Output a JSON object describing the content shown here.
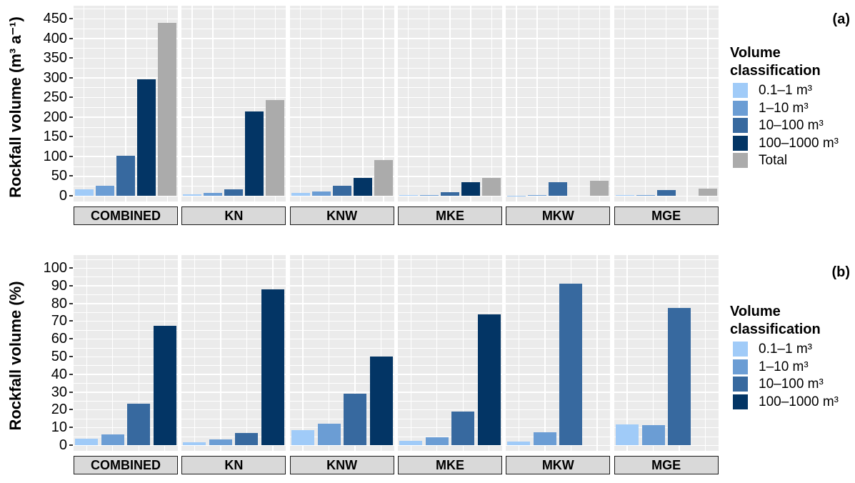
{
  "figure_type": "faceted-bar-chart-two-panels",
  "chart_data": [
    {
      "type": "bar",
      "panel_label": "(a)",
      "ylabel": "Rockfall volume (m³ a⁻¹)",
      "facets": [
        "COMBINED",
        "KN",
        "KNW",
        "MKE",
        "MKW",
        "MGE"
      ],
      "series": [
        {
          "name": "0.1–1 m³",
          "color": "#A0CBF8",
          "values": [
            16,
            4,
            8,
            1.2,
            0.8,
            2.2
          ]
        },
        {
          "name": "1–10 m³",
          "color": "#6B9DD4",
          "values": [
            26,
            8,
            11,
            2.1,
            2.7,
            2.1
          ]
        },
        {
          "name": "10–100 m³",
          "color": "#37699F",
          "values": [
            102,
            17,
            26,
            8.7,
            34.6,
            14.6
          ]
        },
        {
          "name": "100–1000 m³",
          "color": "#033565",
          "values": [
            295,
            214,
            45,
            34,
            0,
            0
          ]
        },
        {
          "name": "Total",
          "color": "#ABABAB",
          "values": [
            439,
            243,
            90,
            46,
            38,
            19
          ]
        }
      ],
      "ylim": [
        0,
        450
      ],
      "ytick_step": 50,
      "yminor_step": 25,
      "grid": true,
      "legend_title": "Volume classification",
      "legend_position": "right"
    },
    {
      "type": "bar",
      "panel_label": "(b)",
      "ylabel": "Rockfall volume (%)",
      "facets": [
        "COMBINED",
        "KN",
        "KNW",
        "MKE",
        "MKW",
        "MGE"
      ],
      "series": [
        {
          "name": "0.1–1 m³",
          "color": "#A0CBF8",
          "values": [
            3.6,
            1.6,
            8.5,
            2.6,
            2.1,
            11.6
          ]
        },
        {
          "name": "1–10 m³",
          "color": "#6B9DD4",
          "values": [
            5.9,
            3.3,
            12.2,
            4.6,
            7.1,
            11.1
          ]
        },
        {
          "name": "10–100 m³",
          "color": "#37699F",
          "values": [
            23.2,
            7.0,
            28.9,
            18.9,
            91.1,
            77.3
          ]
        },
        {
          "name": "100–1000 m³",
          "color": "#033565",
          "values": [
            67.2,
            88.1,
            50.0,
            73.9,
            0,
            0
          ]
        }
      ],
      "ylim": [
        0,
        100
      ],
      "ytick_step": 10,
      "yminor_step": 5,
      "grid": true,
      "legend_title": "Volume classification",
      "legend_position": "right"
    }
  ],
  "colors": {
    "panel_background": "#EBEBEB",
    "gridline": "#FFFFFF",
    "strip_background": "#D9D9D9",
    "strip_border": "#1A1A1A",
    "text": "#000000"
  }
}
